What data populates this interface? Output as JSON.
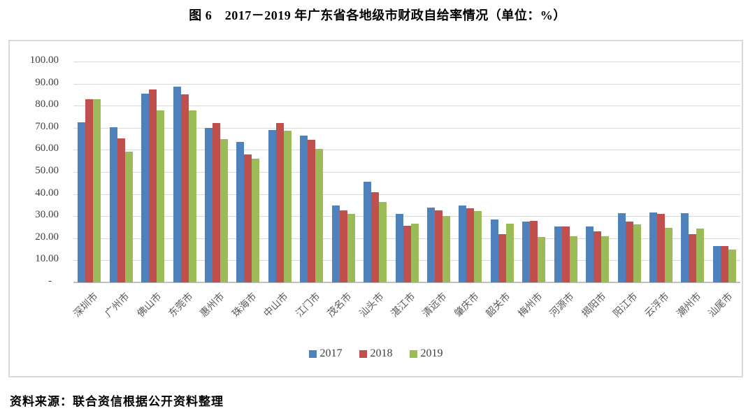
{
  "title": "图 6　2017－2019 年广东省各地级市财政自给率情况（单位：%）",
  "source_note": "资料来源：联合资信根据公开资料整理",
  "colors": {
    "series_2017": "#4F81BD",
    "series_2018": "#C0504D",
    "series_2019": "#9BBB59",
    "gridline": "#D9D9D9",
    "axis": "#BFBFBF",
    "box_border": "#D9D9D9",
    "tick_text": "#3F3F3F",
    "xlabel_text": "#595959"
  },
  "chart_data": {
    "type": "bar",
    "title": "图 6　2017－2019 年广东省各地级市财政自给率情况（单位：%）",
    "unit": "%",
    "categories": [
      "深圳市",
      "广州市",
      "佛山市",
      "东莞市",
      "惠州市",
      "珠海市",
      "中山市",
      "江门市",
      "茂名市",
      "汕头市",
      "湛江市",
      "清远市",
      "肇庆市",
      "韶关市",
      "梅州市",
      "河源市",
      "揭阳市",
      "阳江市",
      "云浮市",
      "潮州市",
      "汕尾市"
    ],
    "series": [
      {
        "name": "2017",
        "color": "#4F81BD",
        "values": [
          72.5,
          70.3,
          85.5,
          88.6,
          70.0,
          63.5,
          69.0,
          66.5,
          34.8,
          45.7,
          31.0,
          34.0,
          34.9,
          28.5,
          27.6,
          25.2,
          25.4,
          31.4,
          31.7,
          31.4,
          16.4
        ]
      },
      {
        "name": "2018",
        "color": "#C0504D",
        "values": [
          82.8,
          65.1,
          87.2,
          85.0,
          72.0,
          58.0,
          72.2,
          64.5,
          32.6,
          40.8,
          25.7,
          32.7,
          33.6,
          21.7,
          27.9,
          25.2,
          23.1,
          27.4,
          31.0,
          21.7,
          16.5
        ]
      },
      {
        "name": "2019",
        "color": "#9BBB59",
        "values": [
          83.0,
          59.3,
          77.9,
          77.9,
          65.0,
          56.0,
          68.8,
          60.5,
          31.1,
          36.4,
          26.5,
          30.0,
          32.4,
          26.7,
          20.5,
          20.8,
          20.8,
          26.4,
          24.7,
          24.5,
          15.0
        ]
      }
    ],
    "ylim": [
      0,
      100
    ],
    "ytick_step": 10,
    "ytick_decimals": 2,
    "zero_tick_label": "-",
    "grid": true,
    "legend_position": "bottom",
    "legend_entries": [
      "2017",
      "2018",
      "2019"
    ]
  }
}
